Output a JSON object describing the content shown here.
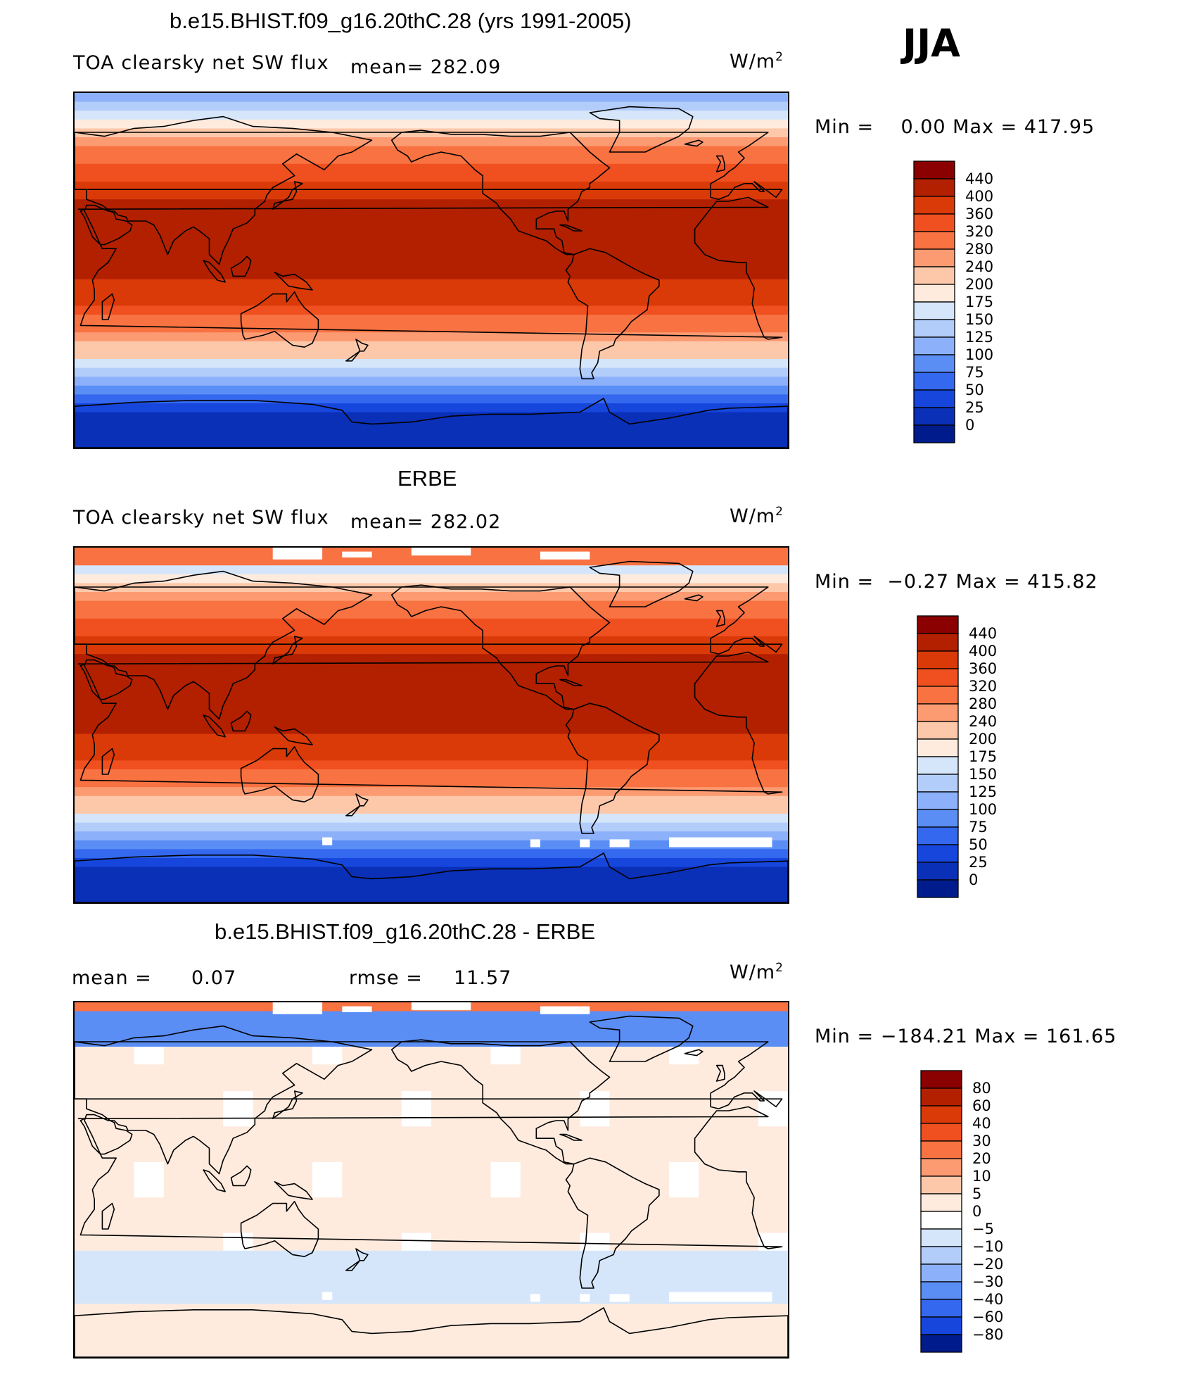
{
  "season": "JJA",
  "units_main": "W/m",
  "units_exp": "2",
  "chart_data": [
    {
      "type": "heatmap",
      "title": "b.e15.BHIST.f09_g16.20thC.28 (yrs 1991-2005)",
      "subtitle": "TOA clearsky net SW flux",
      "mean_text": "mean= 282.09",
      "minmax_text": "Min =    0.00 Max = 417.95",
      "min": 0.0,
      "max": 417.95,
      "mean": 282.09,
      "levels": [
        "440",
        "400",
        "360",
        "320",
        "280",
        "240",
        "200",
        "175",
        "150",
        "125",
        "100",
        "75",
        "50",
        "25",
        "0"
      ],
      "colors": [
        "#8b0000",
        "#b22000",
        "#d93a08",
        "#f05020",
        "#f87242",
        "#fc9a72",
        "#fdc8aa",
        "#feebde",
        "#d5e6fb",
        "#b3cdfb",
        "#8cb1fa",
        "#5a8ef5",
        "#3468ef",
        "#1646dc",
        "#0a30b8",
        "#001c8c"
      ]
    },
    {
      "type": "heatmap",
      "title": "ERBE",
      "subtitle": "TOA clearsky net SW flux",
      "mean_text": "mean= 282.02",
      "minmax_text": "Min =  −0.27 Max = 415.82",
      "min": -0.27,
      "max": 415.82,
      "mean": 282.02,
      "levels": [
        "440",
        "400",
        "360",
        "320",
        "280",
        "240",
        "200",
        "175",
        "150",
        "125",
        "100",
        "75",
        "50",
        "25",
        "0"
      ],
      "colors": [
        "#8b0000",
        "#b22000",
        "#d93a08",
        "#f05020",
        "#f87242",
        "#fc9a72",
        "#fdc8aa",
        "#feebde",
        "#d5e6fb",
        "#b3cdfb",
        "#8cb1fa",
        "#5a8ef5",
        "#3468ef",
        "#1646dc",
        "#0a30b8",
        "#001c8c"
      ]
    },
    {
      "type": "heatmap",
      "title": "b.e15.BHIST.f09_g16.20thC.28 - ERBE",
      "mean_label": "mean =",
      "mean_value": "0.07",
      "rmse_label": "rmse =",
      "rmse_value": "11.57",
      "minmax_text": "Min = −184.21 Max = 161.65",
      "min": -184.21,
      "max": 161.65,
      "mean": 0.07,
      "rmse": 11.57,
      "levels": [
        "80",
        "60",
        "40",
        "30",
        "20",
        "10",
        "5",
        "0",
        "−5",
        "−10",
        "−20",
        "−30",
        "−40",
        "−60",
        "−80"
      ],
      "colors": [
        "#8b0000",
        "#b22000",
        "#d93a08",
        "#f05020",
        "#f87242",
        "#fc9a72",
        "#fdc8aa",
        "#feebde",
        "#ffffff",
        "#d5e6fb",
        "#b3cdfb",
        "#8cb1fa",
        "#5a8ef5",
        "#3468ef",
        "#1646dc",
        "#001c8c"
      ]
    }
  ]
}
